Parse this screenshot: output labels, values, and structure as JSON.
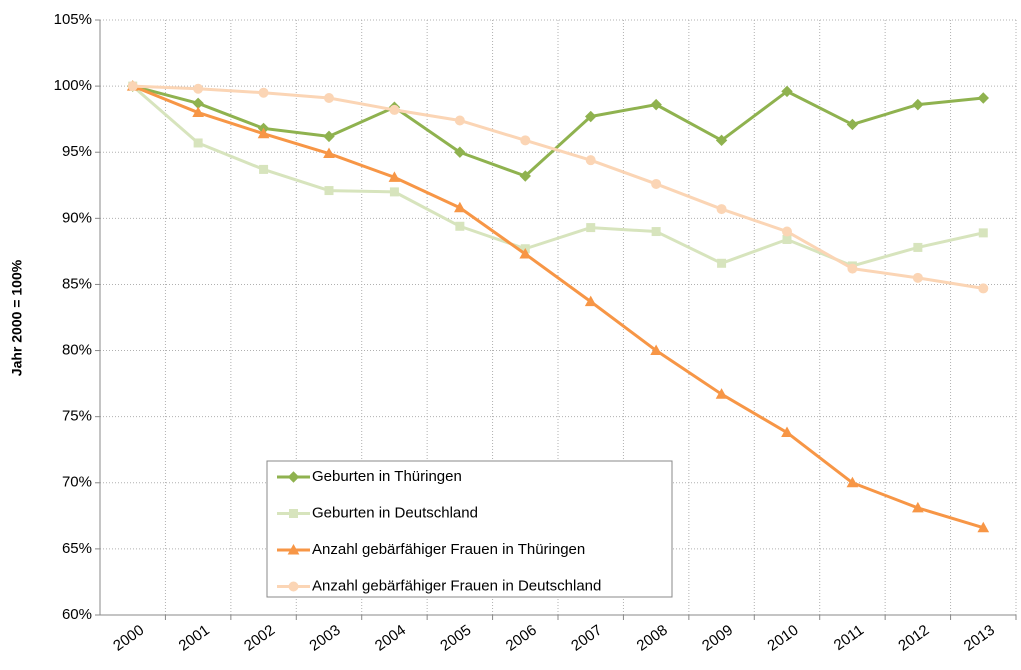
{
  "chart_data": {
    "type": "line",
    "y_label": "Jahr 2000 = 100%",
    "categories": [
      "2000",
      "2001",
      "2002",
      "2003",
      "2004",
      "2005",
      "2006",
      "2007",
      "2008",
      "2009",
      "2010",
      "2011",
      "2012",
      "2013"
    ],
    "series": [
      {
        "name": "Geburten in Thüringen",
        "color": "#8fb24f",
        "marker": "diamond",
        "values": [
          100,
          98.7,
          96.8,
          96.2,
          98.4,
          95.0,
          93.2,
          97.7,
          98.6,
          95.9,
          99.6,
          97.1,
          98.6,
          99.1
        ]
      },
      {
        "name": "Geburten in Deutschland",
        "color": "#d7e4bd",
        "marker": "square",
        "values": [
          100,
          95.7,
          93.7,
          92.1,
          92.0,
          89.4,
          87.7,
          89.3,
          89.0,
          86.6,
          88.4,
          86.4,
          87.8,
          88.9
        ]
      },
      {
        "name": "Anzahl gebärfähiger Frauen in Thüringen",
        "color": "#f79646",
        "marker": "triangle",
        "values": [
          100,
          98.0,
          96.4,
          94.9,
          93.1,
          90.8,
          87.3,
          83.7,
          80.0,
          76.7,
          73.8,
          70.0,
          68.1,
          66.6
        ]
      },
      {
        "name": "Anzahl gebärfähiger Frauen in Deutschland",
        "color": "#fbd5b5",
        "marker": "circle",
        "values": [
          100,
          99.8,
          99.5,
          99.1,
          98.2,
          97.4,
          95.9,
          94.4,
          92.6,
          90.7,
          89.0,
          86.2,
          85.5,
          84.7
        ]
      }
    ],
    "ylim": [
      60,
      105
    ],
    "yticks": [
      {
        "value": 60,
        "label": "60%"
      },
      {
        "value": 65,
        "label": "65%"
      },
      {
        "value": 70,
        "label": "70%"
      },
      {
        "value": 75,
        "label": "75%"
      },
      {
        "value": 80,
        "label": "80%"
      },
      {
        "value": 85,
        "label": "85%"
      },
      {
        "value": 90,
        "label": "90%"
      },
      {
        "value": 95,
        "label": "95%"
      },
      {
        "value": 100,
        "label": "100%"
      },
      {
        "value": 105,
        "label": "105%"
      }
    ],
    "grid": true
  }
}
